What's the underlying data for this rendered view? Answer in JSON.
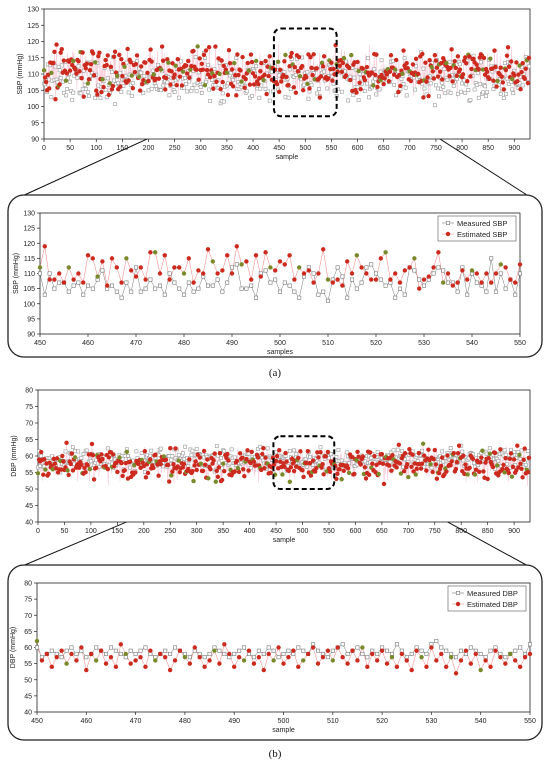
{
  "captions": {
    "a": "(a)",
    "b": "(b)"
  },
  "colors": {
    "measured": "#9a9a9a",
    "estimated": "#cc2a1e",
    "line": "#f09494",
    "frame": "#222222",
    "zoom_box": "#000000"
  },
  "chart_data": [
    {
      "id": "sbp_full",
      "type": "scatter",
      "title": "",
      "xlabel": "sample",
      "ylabel": "SBP (mmHg)",
      "xlim": [
        0,
        930
      ],
      "ylim": [
        90,
        130
      ],
      "xticks": [
        0,
        50,
        100,
        150,
        200,
        250,
        300,
        350,
        400,
        450,
        500,
        550,
        600,
        650,
        700,
        750,
        800,
        850,
        900
      ],
      "yticks": [
        90,
        95,
        100,
        105,
        110,
        115,
        120,
        125,
        130
      ],
      "series": [
        {
          "name": "Measured SBP",
          "n": 930,
          "mean": 108,
          "spread": 4,
          "outlier_range": [
            100,
            120
          ]
        },
        {
          "name": "Estimated SBP",
          "n": 930,
          "mean": 111,
          "spread": 4,
          "outlier_range": [
            100,
            121
          ]
        }
      ],
      "zoom_region": {
        "x": [
          440,
          560
        ],
        "y": [
          97,
          124
        ]
      }
    },
    {
      "id": "sbp_zoom",
      "type": "line",
      "title": "",
      "xlabel": "samples",
      "ylabel": "SBP (mmHg)",
      "xlim": [
        450,
        550
      ],
      "ylim": [
        90,
        130
      ],
      "xticks": [
        450,
        460,
        470,
        480,
        490,
        500,
        510,
        520,
        530,
        540,
        550
      ],
      "yticks": [
        90,
        95,
        100,
        105,
        110,
        115,
        120,
        125,
        130
      ],
      "legend": "top-right",
      "series": [
        {
          "name": "Measured SBP",
          "x_start": 450,
          "values": [
            110,
            103,
            110,
            105,
            107,
            107,
            104,
            106,
            107,
            103,
            106,
            105,
            108,
            111,
            105,
            106,
            104,
            102,
            107,
            104,
            112,
            104,
            105,
            108,
            105,
            106,
            103,
            110,
            107,
            105,
            103,
            107,
            104,
            105,
            109,
            106,
            106,
            108,
            104,
            107,
            112,
            113,
            105,
            105,
            106,
            102,
            110,
            111,
            107,
            108,
            104,
            107,
            106,
            104,
            102,
            109,
            112,
            110,
            103,
            104,
            101,
            108,
            112,
            109,
            102,
            108,
            105,
            107,
            112,
            113,
            110,
            108,
            106,
            107,
            102,
            105,
            103,
            112,
            111,
            108,
            106,
            108,
            110,
            112,
            111,
            107,
            107,
            104,
            112,
            103,
            110,
            107,
            106,
            104,
            115,
            104,
            110,
            105,
            108,
            103,
            110
          ]
        },
        {
          "name": "Estimated SBP",
          "x_start": 450,
          "values": [
            112,
            119,
            108,
            108,
            110,
            107,
            112,
            108,
            110,
            107,
            116,
            115,
            109,
            114,
            106,
            115,
            112,
            107,
            115,
            111,
            109,
            112,
            108,
            117,
            117,
            110,
            116,
            108,
            112,
            112,
            110,
            115,
            107,
            111,
            110,
            118,
            114,
            110,
            111,
            116,
            110,
            119,
            113,
            114,
            108,
            116,
            109,
            117,
            112,
            111,
            114,
            113,
            116,
            108,
            112,
            110,
            111,
            107,
            110,
            118,
            108,
            107,
            108,
            106,
            114,
            110,
            116,
            112,
            110,
            108,
            108,
            115,
            117,
            108,
            110,
            107,
            111,
            112,
            115,
            105,
            108,
            109,
            112,
            117,
            107,
            110,
            106,
            107,
            111,
            108,
            111,
            110,
            107,
            110,
            107,
            110,
            113,
            112,
            108,
            107,
            113
          ]
        }
      ]
    },
    {
      "id": "dbp_full",
      "type": "scatter",
      "title": "",
      "xlabel": "sample",
      "ylabel": "DBP (mmHg)",
      "xlim": [
        0,
        930
      ],
      "ylim": [
        40,
        80
      ],
      "xticks": [
        0,
        50,
        100,
        150,
        200,
        250,
        300,
        350,
        400,
        450,
        500,
        550,
        600,
        650,
        700,
        750,
        800,
        850,
        900
      ],
      "yticks": [
        40,
        45,
        50,
        55,
        60,
        65,
        70,
        75,
        80
      ],
      "series": [
        {
          "name": "Measured DBP",
          "n": 930,
          "mean": 59,
          "spread": 2,
          "outlier_range": [
            54,
            64
          ]
        },
        {
          "name": "Estimated DBP",
          "n": 930,
          "mean": 57.5,
          "spread": 3,
          "outlier_range": [
            50,
            64
          ]
        }
      ],
      "zoom_region": {
        "x": [
          445,
          560
        ],
        "y": [
          50,
          66
        ]
      }
    },
    {
      "id": "dbp_zoom",
      "type": "line",
      "title": "",
      "xlabel": "sample",
      "ylabel": "DBP (mmHg)",
      "xlim": [
        450,
        550
      ],
      "ylim": [
        40,
        80
      ],
      "xticks": [
        450,
        460,
        470,
        480,
        490,
        500,
        510,
        520,
        530,
        540,
        550
      ],
      "yticks": [
        40,
        45,
        50,
        55,
        60,
        65,
        70,
        75,
        80
      ],
      "legend": "top-right",
      "series": [
        {
          "name": "Measured DBP",
          "x_start": 450,
          "values": [
            60,
            57,
            58,
            59,
            58,
            57,
            59,
            60,
            58,
            59,
            57,
            58,
            60,
            59,
            58,
            60,
            59,
            58,
            57,
            59,
            58,
            59,
            60,
            58,
            57,
            58,
            59,
            58,
            60,
            59,
            58,
            57,
            59,
            58,
            57,
            58,
            60,
            59,
            58,
            57,
            58,
            59,
            60,
            58,
            57,
            59,
            58,
            60,
            59,
            57,
            58,
            59,
            58,
            60,
            59,
            58,
            61,
            59,
            58,
            57,
            59,
            60,
            61,
            58,
            59,
            60,
            58,
            57,
            59,
            58,
            60,
            59,
            58,
            61,
            59,
            57,
            58,
            60,
            59,
            58,
            61,
            62,
            60,
            59,
            58,
            57,
            59,
            58,
            60,
            59,
            58,
            57,
            59,
            60,
            58,
            57,
            58,
            59,
            60,
            58,
            61
          ]
        },
        {
          "name": "Estimated DBP",
          "x_start": 450,
          "values": [
            62,
            56,
            58,
            54,
            57,
            59,
            55,
            58,
            56,
            60,
            53,
            58,
            56,
            59,
            55,
            57,
            54,
            61,
            58,
            55,
            56,
            57,
            54,
            59,
            56,
            58,
            57,
            53,
            56,
            59,
            57,
            55,
            60,
            57,
            54,
            56,
            59,
            55,
            61,
            58,
            54,
            57,
            56,
            59,
            55,
            57,
            53,
            58,
            56,
            60,
            55,
            57,
            59,
            54,
            56,
            58,
            60,
            55,
            57,
            59,
            56,
            60,
            57,
            55,
            59,
            56,
            60,
            54,
            58,
            56,
            59,
            55,
            57,
            54,
            58,
            56,
            53,
            59,
            57,
            54,
            60,
            56,
            58,
            54,
            57,
            52,
            56,
            59,
            55,
            58,
            53,
            56,
            54,
            59,
            57,
            55,
            58,
            56,
            54,
            57,
            58
          ]
        }
      ]
    }
  ]
}
